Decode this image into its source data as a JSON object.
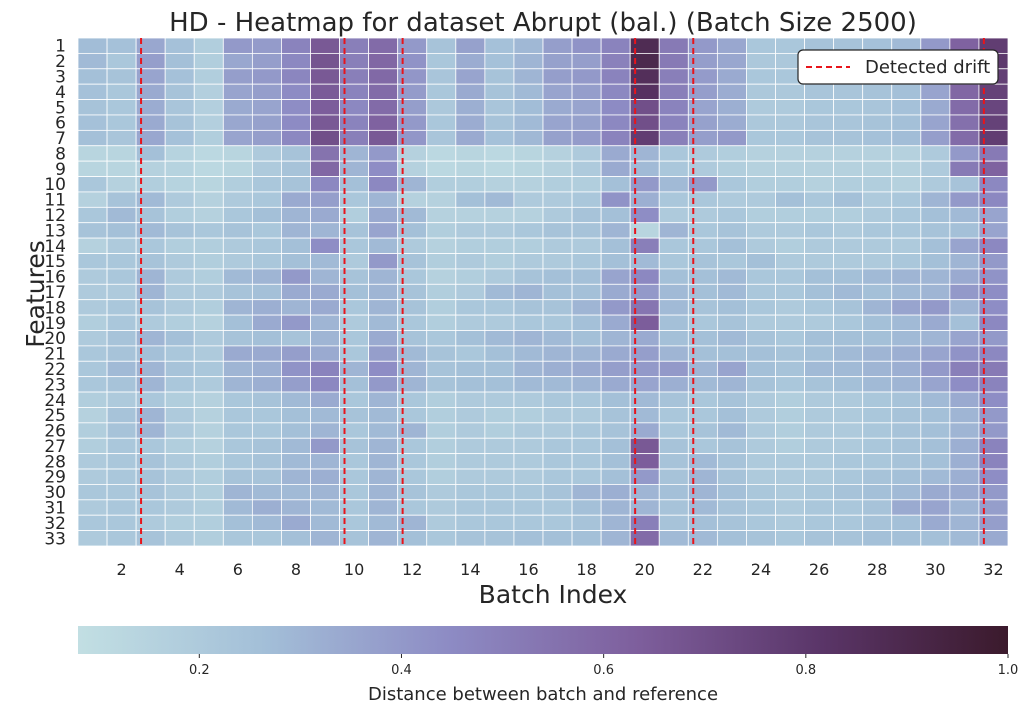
{
  "chart_data": {
    "type": "heatmap",
    "title": "HD - Heatmap for dataset Abrupt (bal.) (Batch Size 2500)",
    "xlabel": "Batch Index",
    "ylabel": "Features",
    "x_ticks": [
      "2",
      "4",
      "6",
      "8",
      "10",
      "12",
      "14",
      "16",
      "18",
      "20",
      "22",
      "24",
      "26",
      "28",
      "30",
      "32"
    ],
    "x_range": [
      1,
      32
    ],
    "rows": [
      "1",
      "2",
      "3",
      "4",
      "5",
      "6",
      "7",
      "8",
      "9",
      "10",
      "11",
      "12",
      "13",
      "14",
      "15",
      "16",
      "17",
      "18",
      "19",
      "20",
      "21",
      "22",
      "23",
      "24",
      "25",
      "26",
      "27",
      "28",
      "29",
      "30",
      "31",
      "32",
      "33"
    ],
    "colormap": {
      "stops": [
        "#c2dfe3",
        "#a3bfd8",
        "#8d8bc4",
        "#7e5f9d",
        "#5a3568",
        "#3b1a2c"
      ],
      "vmin": 0.08,
      "vmax": 1.0
    },
    "colorbar": {
      "label": "Distance between batch and reference",
      "ticks": [
        "0.2",
        "0.4",
        "0.6",
        "0.8",
        "1.0"
      ],
      "tick_values": [
        0.2,
        0.4,
        0.6,
        0.8,
        1.0
      ]
    },
    "drift_lines": [
      2.67,
      9.67,
      11.67,
      21.67,
      31.67,
      19.67
    ],
    "legend": {
      "label": "Detected drift",
      "color": "#e8141b",
      "position": "top-right"
    },
    "grid": false,
    "values": [
      [
        0.27,
        0.25,
        0.35,
        0.25,
        0.18,
        0.4,
        0.39,
        0.48,
        0.66,
        0.5,
        0.58,
        0.4,
        0.24,
        0.37,
        0.25,
        0.29,
        0.38,
        0.42,
        0.48,
        0.88,
        0.52,
        0.4,
        0.35,
        0.22,
        0.22,
        0.24,
        0.24,
        0.25,
        0.28,
        0.4,
        0.62,
        0.78
      ],
      [
        0.28,
        0.22,
        0.38,
        0.26,
        0.18,
        0.35,
        0.38,
        0.46,
        0.68,
        0.5,
        0.6,
        0.42,
        0.22,
        0.33,
        0.25,
        0.3,
        0.37,
        0.38,
        0.49,
        0.9,
        0.52,
        0.38,
        0.35,
        0.21,
        0.21,
        0.25,
        0.23,
        0.24,
        0.27,
        0.4,
        0.64,
        0.8
      ],
      [
        0.26,
        0.24,
        0.36,
        0.25,
        0.18,
        0.38,
        0.4,
        0.47,
        0.66,
        0.5,
        0.59,
        0.41,
        0.23,
        0.36,
        0.24,
        0.3,
        0.38,
        0.4,
        0.48,
        0.86,
        0.5,
        0.39,
        0.34,
        0.22,
        0.22,
        0.24,
        0.24,
        0.24,
        0.28,
        0.38,
        0.62,
        0.77
      ],
      [
        0.25,
        0.22,
        0.34,
        0.24,
        0.17,
        0.36,
        0.38,
        0.45,
        0.65,
        0.48,
        0.58,
        0.39,
        0.22,
        0.34,
        0.24,
        0.28,
        0.36,
        0.38,
        0.46,
        0.84,
        0.5,
        0.38,
        0.33,
        0.21,
        0.21,
        0.23,
        0.23,
        0.24,
        0.26,
        0.36,
        0.6,
        0.76
      ],
      [
        0.24,
        0.22,
        0.33,
        0.23,
        0.17,
        0.34,
        0.36,
        0.44,
        0.64,
        0.46,
        0.58,
        0.38,
        0.21,
        0.32,
        0.23,
        0.27,
        0.34,
        0.36,
        0.45,
        0.7,
        0.48,
        0.36,
        0.32,
        0.2,
        0.2,
        0.22,
        0.22,
        0.23,
        0.25,
        0.34,
        0.58,
        0.74
      ],
      [
        0.25,
        0.22,
        0.34,
        0.24,
        0.17,
        0.35,
        0.37,
        0.45,
        0.66,
        0.48,
        0.62,
        0.4,
        0.22,
        0.33,
        0.24,
        0.28,
        0.36,
        0.37,
        0.46,
        0.7,
        0.48,
        0.37,
        0.33,
        0.21,
        0.21,
        0.23,
        0.23,
        0.24,
        0.26,
        0.36,
        0.56,
        0.76
      ],
      [
        0.26,
        0.23,
        0.35,
        0.25,
        0.18,
        0.36,
        0.38,
        0.46,
        0.7,
        0.5,
        0.66,
        0.41,
        0.23,
        0.34,
        0.25,
        0.29,
        0.37,
        0.39,
        0.48,
        0.78,
        0.5,
        0.38,
        0.4,
        0.22,
        0.22,
        0.24,
        0.24,
        0.25,
        0.27,
        0.38,
        0.58,
        0.78
      ],
      [
        0.14,
        0.14,
        0.26,
        0.15,
        0.12,
        0.14,
        0.2,
        0.24,
        0.55,
        0.3,
        0.4,
        0.16,
        0.12,
        0.14,
        0.12,
        0.14,
        0.16,
        0.2,
        0.34,
        0.3,
        0.22,
        0.2,
        0.18,
        0.16,
        0.16,
        0.16,
        0.16,
        0.16,
        0.16,
        0.2,
        0.4,
        0.52
      ],
      [
        0.14,
        0.14,
        0.16,
        0.15,
        0.12,
        0.14,
        0.2,
        0.24,
        0.6,
        0.3,
        0.44,
        0.16,
        0.12,
        0.14,
        0.12,
        0.14,
        0.16,
        0.2,
        0.34,
        0.28,
        0.22,
        0.2,
        0.18,
        0.16,
        0.16,
        0.16,
        0.16,
        0.16,
        0.16,
        0.2,
        0.52,
        0.62
      ],
      [
        0.22,
        0.16,
        0.18,
        0.15,
        0.14,
        0.18,
        0.22,
        0.24,
        0.46,
        0.26,
        0.46,
        0.3,
        0.18,
        0.18,
        0.16,
        0.16,
        0.18,
        0.18,
        0.26,
        0.4,
        0.28,
        0.4,
        0.22,
        0.18,
        0.18,
        0.16,
        0.18,
        0.18,
        0.16,
        0.2,
        0.24,
        0.46
      ],
      [
        0.16,
        0.24,
        0.28,
        0.2,
        0.16,
        0.2,
        0.22,
        0.34,
        0.38,
        0.22,
        0.3,
        0.16,
        0.16,
        0.26,
        0.28,
        0.2,
        0.2,
        0.22,
        0.42,
        0.32,
        0.22,
        0.22,
        0.2,
        0.2,
        0.26,
        0.22,
        0.26,
        0.2,
        0.22,
        0.3,
        0.4,
        0.46
      ],
      [
        0.22,
        0.28,
        0.24,
        0.18,
        0.16,
        0.22,
        0.26,
        0.3,
        0.34,
        0.18,
        0.34,
        0.28,
        0.16,
        0.16,
        0.16,
        0.16,
        0.2,
        0.24,
        0.26,
        0.44,
        0.2,
        0.2,
        0.22,
        0.18,
        0.18,
        0.18,
        0.18,
        0.2,
        0.22,
        0.26,
        0.28,
        0.36
      ],
      [
        0.24,
        0.26,
        0.28,
        0.24,
        0.22,
        0.24,
        0.22,
        0.3,
        0.3,
        0.24,
        0.36,
        0.26,
        0.18,
        0.2,
        0.2,
        0.22,
        0.24,
        0.24,
        0.3,
        0.14,
        0.3,
        0.22,
        0.24,
        0.2,
        0.2,
        0.22,
        0.2,
        0.22,
        0.22,
        0.24,
        0.26,
        0.36
      ],
      [
        0.16,
        0.2,
        0.22,
        0.18,
        0.18,
        0.2,
        0.22,
        0.26,
        0.44,
        0.22,
        0.28,
        0.2,
        0.16,
        0.18,
        0.18,
        0.18,
        0.2,
        0.2,
        0.26,
        0.5,
        0.22,
        0.22,
        0.26,
        0.2,
        0.18,
        0.2,
        0.2,
        0.2,
        0.2,
        0.26,
        0.36,
        0.46
      ],
      [
        0.22,
        0.22,
        0.24,
        0.2,
        0.18,
        0.2,
        0.22,
        0.26,
        0.28,
        0.2,
        0.4,
        0.24,
        0.18,
        0.2,
        0.18,
        0.2,
        0.2,
        0.22,
        0.26,
        0.28,
        0.22,
        0.24,
        0.22,
        0.26,
        0.2,
        0.2,
        0.2,
        0.2,
        0.22,
        0.26,
        0.3,
        0.4
      ],
      [
        0.2,
        0.22,
        0.3,
        0.2,
        0.18,
        0.28,
        0.3,
        0.4,
        0.3,
        0.24,
        0.3,
        0.22,
        0.16,
        0.18,
        0.2,
        0.24,
        0.26,
        0.26,
        0.36,
        0.46,
        0.26,
        0.26,
        0.28,
        0.22,
        0.22,
        0.26,
        0.26,
        0.28,
        0.3,
        0.3,
        0.34,
        0.42
      ],
      [
        0.2,
        0.2,
        0.3,
        0.2,
        0.2,
        0.24,
        0.26,
        0.34,
        0.34,
        0.26,
        0.3,
        0.24,
        0.18,
        0.2,
        0.28,
        0.3,
        0.26,
        0.26,
        0.34,
        0.4,
        0.28,
        0.26,
        0.28,
        0.22,
        0.22,
        0.26,
        0.28,
        0.26,
        0.28,
        0.3,
        0.4,
        0.44
      ],
      [
        0.2,
        0.22,
        0.24,
        0.2,
        0.18,
        0.3,
        0.32,
        0.3,
        0.34,
        0.22,
        0.3,
        0.24,
        0.18,
        0.22,
        0.22,
        0.24,
        0.24,
        0.3,
        0.4,
        0.54,
        0.28,
        0.24,
        0.26,
        0.22,
        0.2,
        0.22,
        0.24,
        0.3,
        0.36,
        0.4,
        0.3,
        0.44
      ],
      [
        0.18,
        0.22,
        0.2,
        0.18,
        0.16,
        0.26,
        0.34,
        0.4,
        0.3,
        0.2,
        0.28,
        0.22,
        0.18,
        0.2,
        0.2,
        0.22,
        0.22,
        0.26,
        0.34,
        0.64,
        0.26,
        0.22,
        0.24,
        0.2,
        0.2,
        0.2,
        0.22,
        0.26,
        0.28,
        0.34,
        0.26,
        0.46
      ],
      [
        0.2,
        0.24,
        0.3,
        0.26,
        0.2,
        0.24,
        0.26,
        0.24,
        0.3,
        0.22,
        0.34,
        0.24,
        0.22,
        0.26,
        0.28,
        0.3,
        0.28,
        0.26,
        0.3,
        0.34,
        0.26,
        0.26,
        0.28,
        0.24,
        0.22,
        0.26,
        0.26,
        0.26,
        0.28,
        0.3,
        0.36,
        0.4
      ],
      [
        0.22,
        0.24,
        0.26,
        0.22,
        0.2,
        0.34,
        0.34,
        0.38,
        0.34,
        0.22,
        0.38,
        0.28,
        0.24,
        0.22,
        0.26,
        0.28,
        0.3,
        0.3,
        0.34,
        0.38,
        0.3,
        0.26,
        0.26,
        0.26,
        0.24,
        0.26,
        0.28,
        0.3,
        0.32,
        0.36,
        0.42,
        0.46
      ],
      [
        0.22,
        0.28,
        0.3,
        0.24,
        0.22,
        0.3,
        0.32,
        0.42,
        0.48,
        0.3,
        0.44,
        0.3,
        0.24,
        0.26,
        0.26,
        0.3,
        0.32,
        0.34,
        0.38,
        0.4,
        0.4,
        0.3,
        0.36,
        0.26,
        0.24,
        0.28,
        0.28,
        0.3,
        0.32,
        0.4,
        0.5,
        0.52
      ],
      [
        0.22,
        0.24,
        0.3,
        0.22,
        0.2,
        0.3,
        0.32,
        0.38,
        0.46,
        0.26,
        0.4,
        0.3,
        0.24,
        0.26,
        0.26,
        0.28,
        0.28,
        0.3,
        0.34,
        0.36,
        0.32,
        0.28,
        0.3,
        0.24,
        0.22,
        0.24,
        0.26,
        0.28,
        0.3,
        0.36,
        0.44,
        0.48
      ],
      [
        0.18,
        0.2,
        0.22,
        0.18,
        0.16,
        0.22,
        0.24,
        0.28,
        0.34,
        0.22,
        0.3,
        0.22,
        0.18,
        0.2,
        0.2,
        0.2,
        0.22,
        0.22,
        0.26,
        0.28,
        0.24,
        0.22,
        0.24,
        0.2,
        0.18,
        0.2,
        0.2,
        0.22,
        0.24,
        0.28,
        0.34,
        0.44
      ],
      [
        0.16,
        0.24,
        0.3,
        0.2,
        0.16,
        0.22,
        0.22,
        0.26,
        0.28,
        0.24,
        0.28,
        0.22,
        0.18,
        0.2,
        0.18,
        0.18,
        0.2,
        0.2,
        0.24,
        0.28,
        0.22,
        0.22,
        0.26,
        0.2,
        0.18,
        0.2,
        0.2,
        0.22,
        0.24,
        0.26,
        0.3,
        0.4
      ],
      [
        0.18,
        0.24,
        0.3,
        0.2,
        0.16,
        0.22,
        0.22,
        0.26,
        0.3,
        0.22,
        0.28,
        0.3,
        0.18,
        0.2,
        0.18,
        0.2,
        0.2,
        0.22,
        0.24,
        0.34,
        0.22,
        0.24,
        0.28,
        0.2,
        0.18,
        0.2,
        0.2,
        0.22,
        0.24,
        0.26,
        0.3,
        0.4
      ],
      [
        0.18,
        0.22,
        0.22,
        0.18,
        0.16,
        0.22,
        0.24,
        0.28,
        0.4,
        0.24,
        0.3,
        0.22,
        0.18,
        0.2,
        0.2,
        0.2,
        0.22,
        0.22,
        0.26,
        0.66,
        0.24,
        0.22,
        0.24,
        0.2,
        0.18,
        0.2,
        0.2,
        0.22,
        0.24,
        0.26,
        0.32,
        0.48
      ],
      [
        0.2,
        0.22,
        0.24,
        0.2,
        0.18,
        0.22,
        0.24,
        0.28,
        0.3,
        0.22,
        0.3,
        0.22,
        0.18,
        0.2,
        0.2,
        0.2,
        0.22,
        0.22,
        0.26,
        0.64,
        0.24,
        0.28,
        0.24,
        0.2,
        0.2,
        0.2,
        0.22,
        0.22,
        0.24,
        0.26,
        0.32,
        0.48
      ],
      [
        0.2,
        0.22,
        0.24,
        0.2,
        0.18,
        0.24,
        0.24,
        0.3,
        0.32,
        0.22,
        0.3,
        0.22,
        0.18,
        0.2,
        0.2,
        0.2,
        0.22,
        0.22,
        0.26,
        0.4,
        0.24,
        0.3,
        0.24,
        0.2,
        0.2,
        0.2,
        0.22,
        0.24,
        0.26,
        0.28,
        0.32,
        0.44
      ],
      [
        0.22,
        0.22,
        0.24,
        0.2,
        0.18,
        0.3,
        0.28,
        0.28,
        0.3,
        0.22,
        0.3,
        0.24,
        0.2,
        0.22,
        0.22,
        0.22,
        0.24,
        0.3,
        0.32,
        0.3,
        0.26,
        0.3,
        0.26,
        0.22,
        0.2,
        0.22,
        0.24,
        0.26,
        0.28,
        0.34,
        0.34,
        0.4
      ],
      [
        0.2,
        0.22,
        0.22,
        0.2,
        0.18,
        0.28,
        0.32,
        0.3,
        0.28,
        0.22,
        0.3,
        0.22,
        0.2,
        0.22,
        0.22,
        0.22,
        0.22,
        0.26,
        0.3,
        0.3,
        0.24,
        0.28,
        0.24,
        0.22,
        0.2,
        0.22,
        0.22,
        0.24,
        0.34,
        0.36,
        0.3,
        0.38
      ],
      [
        0.22,
        0.22,
        0.2,
        0.18,
        0.18,
        0.26,
        0.28,
        0.34,
        0.28,
        0.22,
        0.28,
        0.3,
        0.2,
        0.22,
        0.22,
        0.22,
        0.22,
        0.24,
        0.3,
        0.5,
        0.24,
        0.26,
        0.24,
        0.22,
        0.2,
        0.22,
        0.22,
        0.24,
        0.26,
        0.34,
        0.3,
        0.38
      ],
      [
        0.2,
        0.22,
        0.24,
        0.2,
        0.18,
        0.22,
        0.22,
        0.26,
        0.3,
        0.24,
        0.3,
        0.26,
        0.22,
        0.24,
        0.24,
        0.26,
        0.26,
        0.26,
        0.3,
        0.58,
        0.28,
        0.28,
        0.26,
        0.24,
        0.22,
        0.24,
        0.24,
        0.26,
        0.26,
        0.26,
        0.28,
        0.34
      ]
    ]
  }
}
